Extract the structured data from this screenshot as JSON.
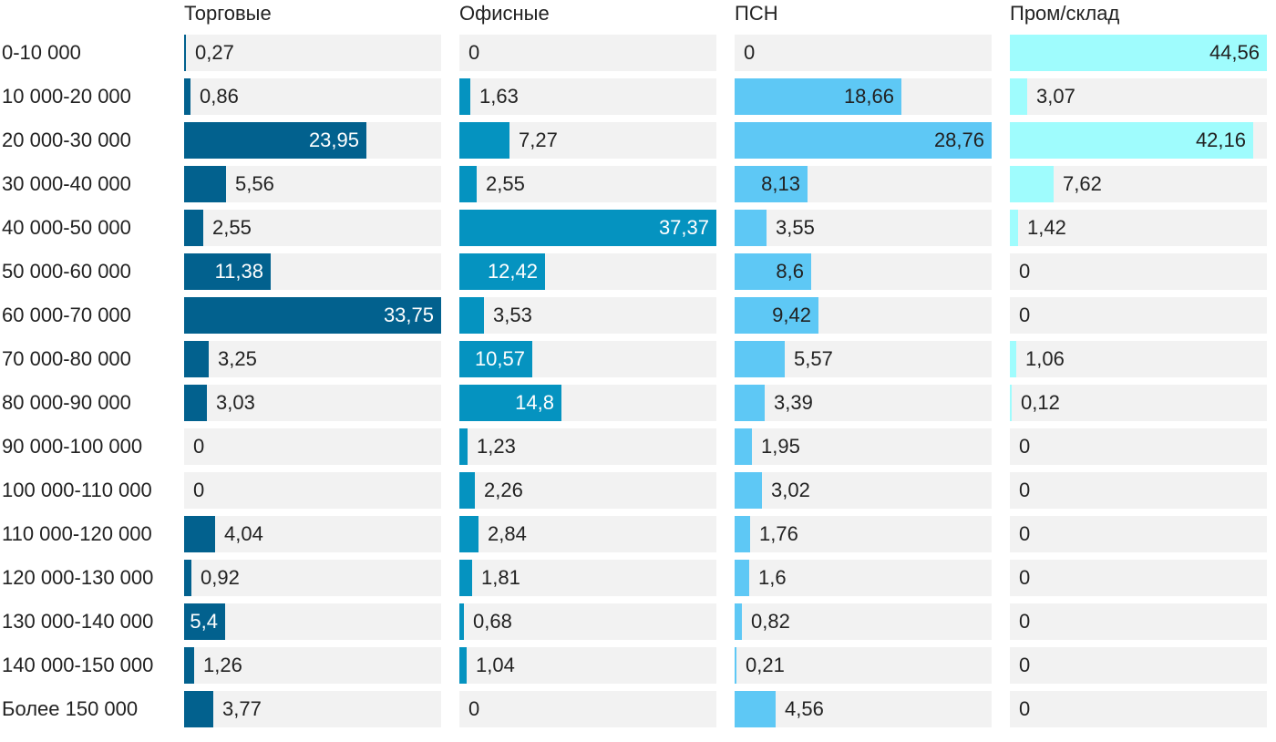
{
  "chart_data": {
    "type": "bar",
    "orientation": "horizontal",
    "layout": "small-multiples",
    "categories": [
      "0-10 000",
      "10 000-20 000",
      "20 000-30 000",
      "30 000-40 000",
      "40 000-50 000",
      "50 000-60 000",
      "60 000-70 000",
      "70 000-80 000",
      "80 000-90 000",
      "90 000-100 000",
      "100 000-110 000",
      "110 000-120 000",
      "120 000-130 000",
      "130 000-140 000",
      "140 000-150 000",
      "Более 150 000"
    ],
    "series": [
      {
        "name": "Торговые",
        "color": "#02618e",
        "inside_text_color": "#ffffff",
        "values": [
          0.27,
          0.86,
          23.95,
          5.56,
          2.55,
          11.38,
          33.75,
          3.25,
          3.03,
          0,
          0,
          4.04,
          0.92,
          5.4,
          1.26,
          3.77
        ],
        "labels": [
          "0,27",
          "0,86",
          "23,95",
          "5,56",
          "2,55",
          "11,38",
          "33,75",
          "3,25",
          "3,03",
          "0",
          "0",
          "4,04",
          "0,92",
          "5,4",
          "1,26",
          "3,77"
        ],
        "xlim": [
          0,
          33.75
        ]
      },
      {
        "name": "Офисные",
        "color": "#0593c0",
        "inside_text_color": "#ffffff",
        "values": [
          0,
          1.63,
          7.27,
          2.55,
          37.37,
          12.42,
          3.53,
          10.57,
          14.8,
          1.23,
          2.26,
          2.84,
          1.81,
          0.68,
          1.04,
          0
        ],
        "labels": [
          "0",
          "1,63",
          "7,27",
          "2,55",
          "37,37",
          "12,42",
          "3,53",
          "10,57",
          "14,8",
          "1,23",
          "2,26",
          "2,84",
          "1,81",
          "0,68",
          "1,04",
          "0"
        ],
        "xlim": [
          0,
          37.37
        ]
      },
      {
        "name": "ПСН",
        "color": "#5ec8f5",
        "inside_text_color": "#222222",
        "values": [
          0,
          18.66,
          28.76,
          8.13,
          3.55,
          8.6,
          9.42,
          5.57,
          3.39,
          1.95,
          3.02,
          1.76,
          1.6,
          0.82,
          0.21,
          4.56
        ],
        "labels": [
          "0",
          "18,66",
          "28,76",
          "8,13",
          "3,55",
          "8,6",
          "9,42",
          "5,57",
          "3,39",
          "1,95",
          "3,02",
          "1,76",
          "1,6",
          "0,82",
          "0,21",
          "4,56"
        ],
        "xlim": [
          0,
          28.76
        ]
      },
      {
        "name": "Пром/склад",
        "color": "#9ffcfd",
        "inside_text_color": "#222222",
        "values": [
          44.56,
          3.07,
          42.16,
          7.62,
          1.42,
          0,
          0,
          1.06,
          0.12,
          0,
          0,
          0,
          0,
          0,
          0,
          0
        ],
        "labels": [
          "44,56",
          "3,07",
          "42,16",
          "7,62",
          "1,42",
          "0",
          "0",
          "1,06",
          "0,12",
          "0",
          "0",
          "0",
          "0",
          "0",
          "0",
          "0"
        ],
        "xlim": [
          0,
          44.56
        ]
      }
    ],
    "track_color": "#f2f2f2",
    "grid": false,
    "legend": "none",
    "title": "",
    "xlabel": "",
    "ylabel": ""
  }
}
